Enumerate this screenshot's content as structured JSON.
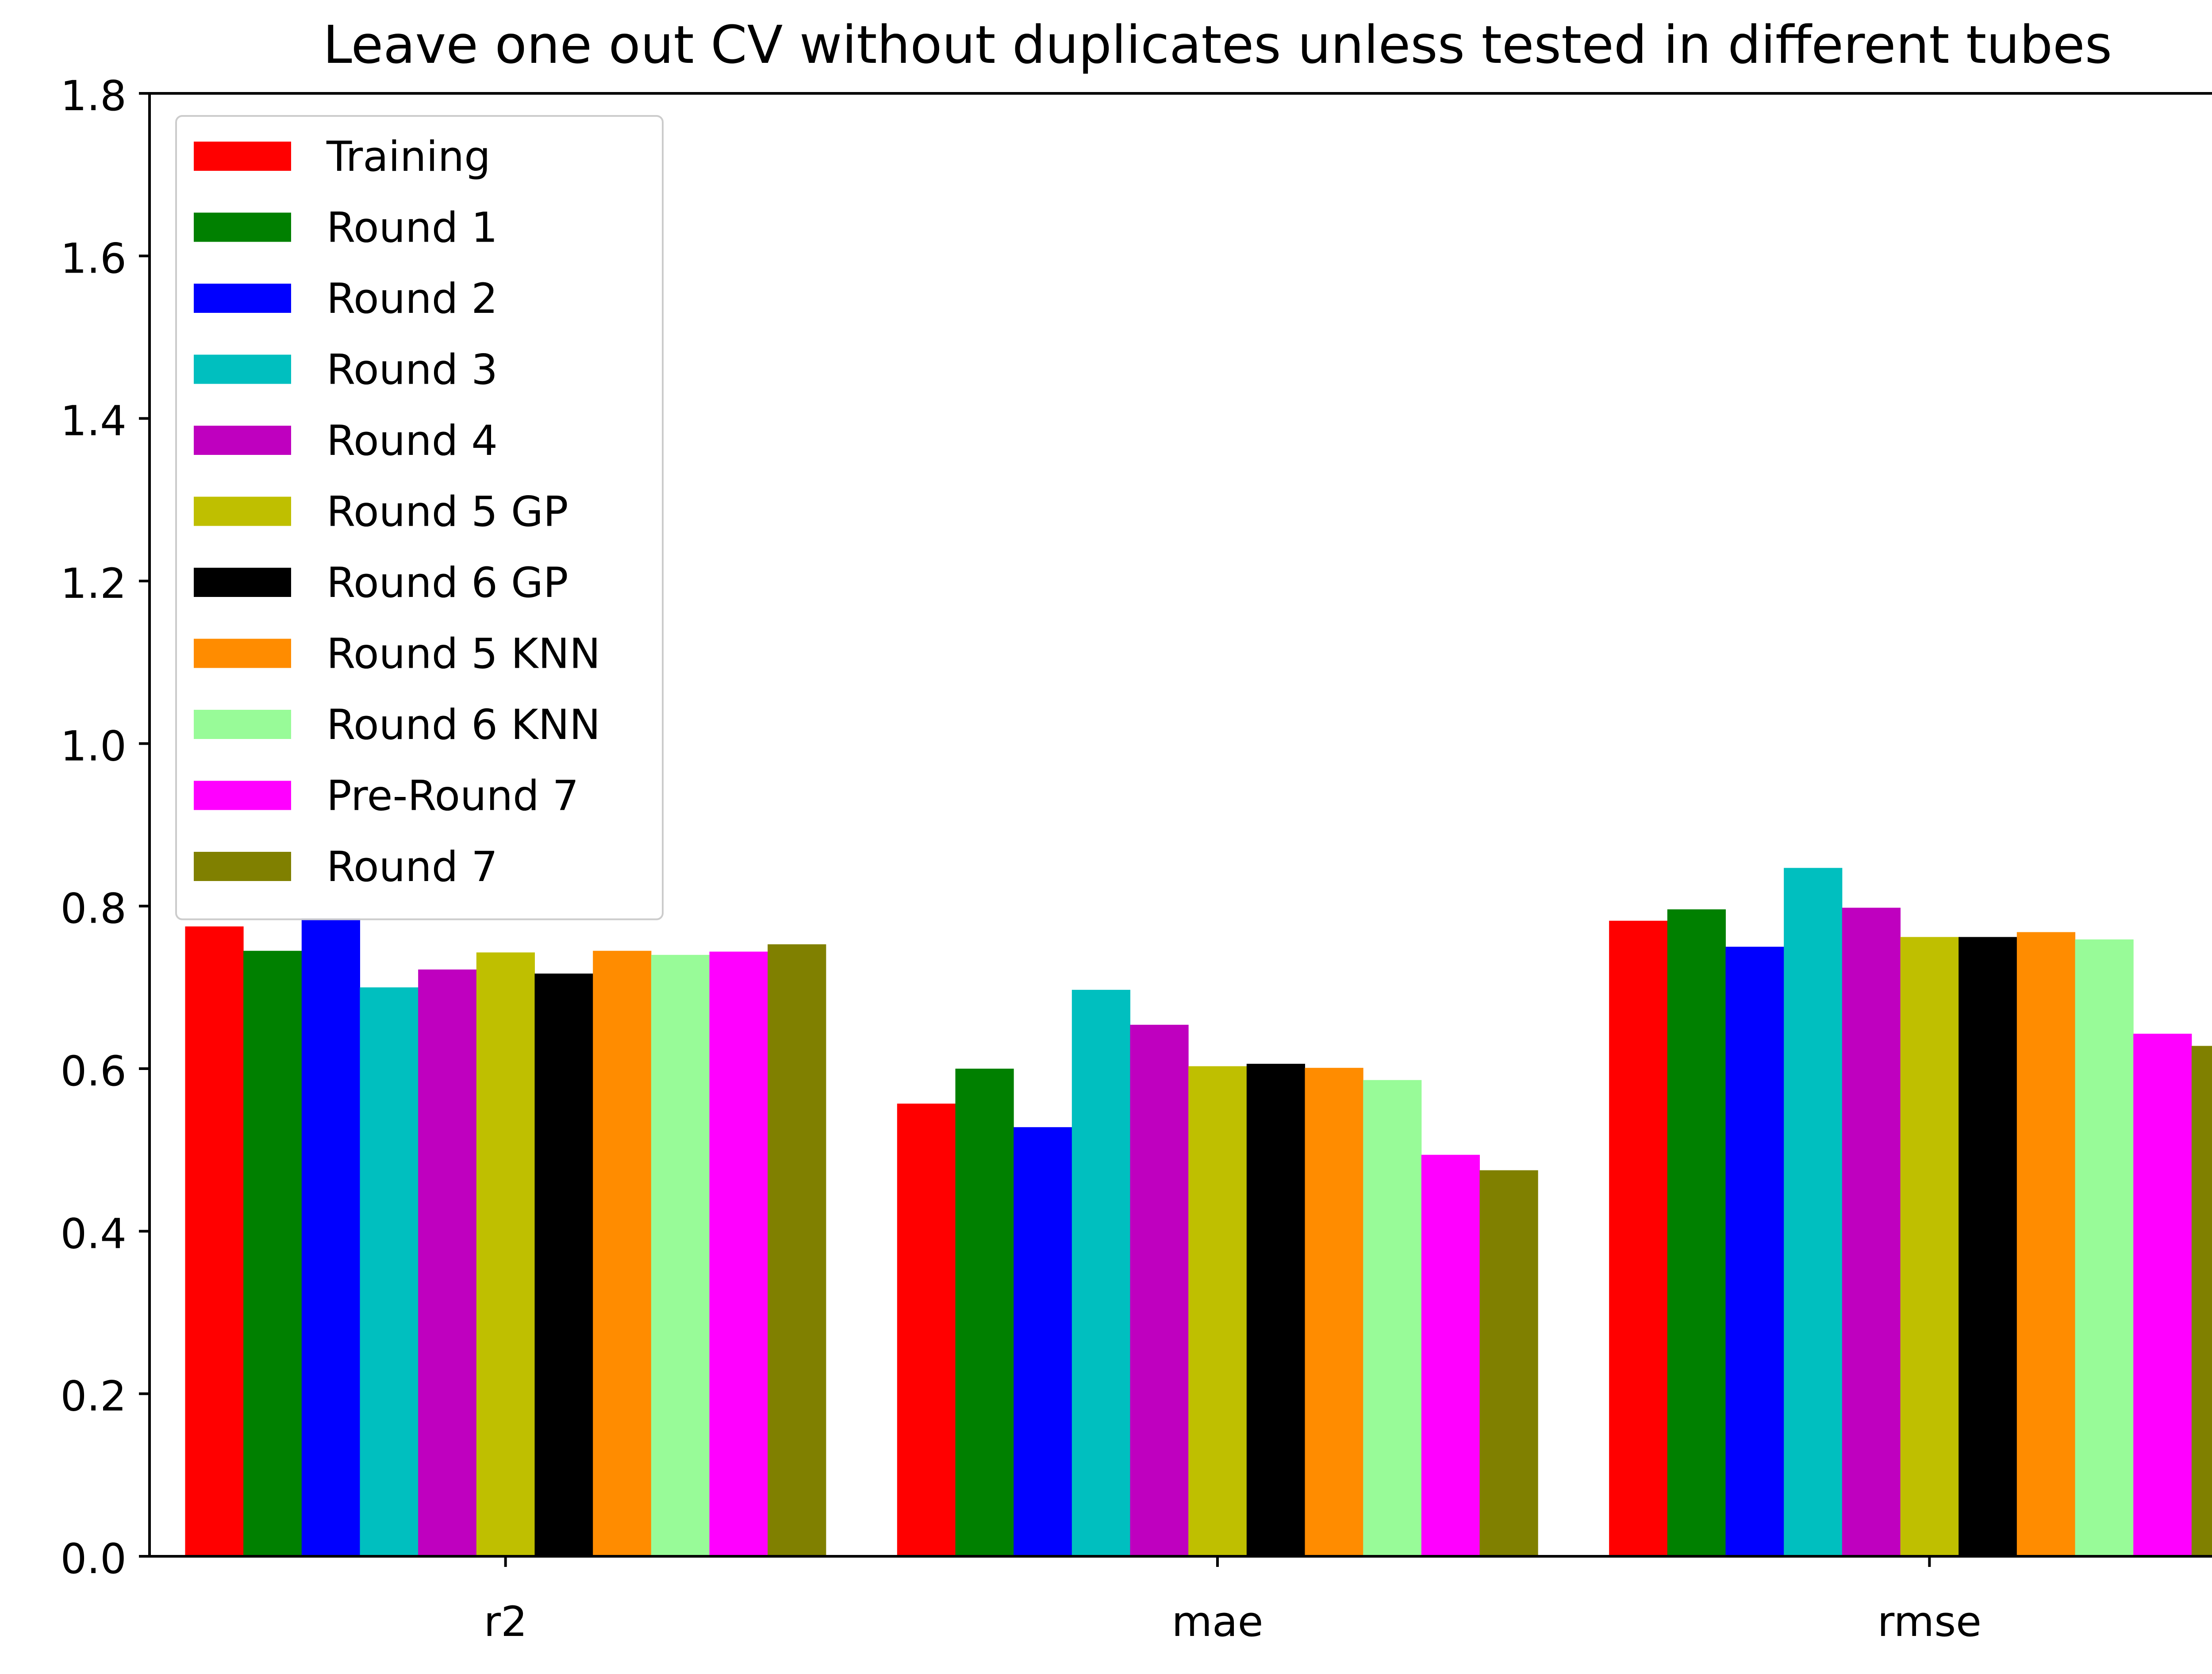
{
  "chart_data": {
    "type": "bar",
    "title": "Leave one out CV without duplicates unless tested in different tubes",
    "xlabel": "",
    "ylabel": "",
    "categories": [
      "r2",
      "mae",
      "rmse"
    ],
    "ylim": [
      0,
      1.8
    ],
    "yticks": [
      "0.0",
      "0.2",
      "0.4",
      "0.6",
      "0.8",
      "1.0",
      "1.2",
      "1.4",
      "1.6",
      "1.8"
    ],
    "grid": false,
    "legend_position": "top-left",
    "series": [
      {
        "name": "Training",
        "color": "#ff0000",
        "values": [
          0.775,
          0.557,
          0.782
        ]
      },
      {
        "name": "Round 1",
        "color": "#008000",
        "values": [
          0.745,
          0.6,
          0.796
        ]
      },
      {
        "name": "Round 2",
        "color": "#0000ff",
        "values": [
          0.785,
          0.528,
          0.75
        ]
      },
      {
        "name": "Round 3",
        "color": "#00bfbf",
        "values": [
          0.7,
          0.697,
          0.847
        ]
      },
      {
        "name": "Round 4",
        "color": "#bf00bf",
        "values": [
          0.722,
          0.654,
          0.798
        ]
      },
      {
        "name": "Round 5 GP",
        "color": "#bfbf00",
        "values": [
          0.743,
          0.603,
          0.762
        ]
      },
      {
        "name": "Round 6 GP",
        "color": "#000000",
        "values": [
          0.717,
          0.606,
          0.762
        ]
      },
      {
        "name": "Round 5 KNN",
        "color": "#ff8c00",
        "values": [
          0.745,
          0.601,
          0.768
        ]
      },
      {
        "name": "Round 6 KNN",
        "color": "#98fb98",
        "values": [
          0.74,
          0.586,
          0.759
        ]
      },
      {
        "name": "Pre-Round 7",
        "color": "#ff00ff",
        "values": [
          0.744,
          0.494,
          0.643
        ]
      },
      {
        "name": "Round 7",
        "color": "#808000",
        "values": [
          0.753,
          0.475,
          0.628
        ]
      }
    ]
  }
}
